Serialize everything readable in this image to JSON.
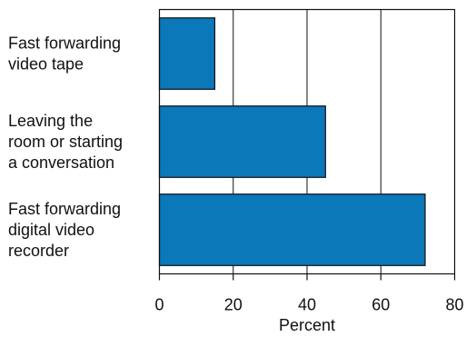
{
  "chart_data": {
    "type": "bar",
    "orientation": "horizontal",
    "categories": [
      [
        "Fast forwarding",
        "video tape"
      ],
      [
        "Leaving the",
        "room or starting",
        "a conversation"
      ],
      [
        "Fast forwarding",
        "digital video",
        "recorder"
      ]
    ],
    "values": [
      15,
      45,
      72
    ],
    "xlabel": "Percent",
    "xlim": [
      0,
      80
    ],
    "xticks": [
      0,
      20,
      40,
      60,
      80
    ],
    "grid": true,
    "bar_color": "#0a78b9"
  }
}
